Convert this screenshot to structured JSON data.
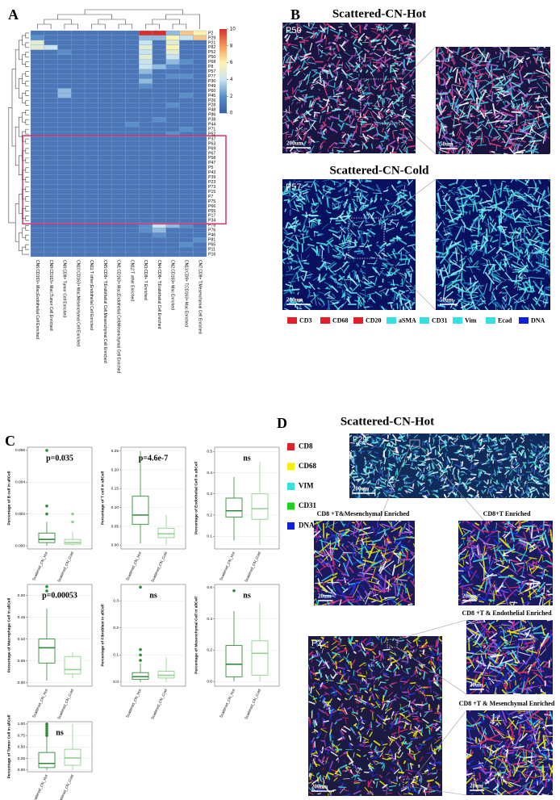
{
  "panel_labels": [
    "A",
    "B",
    "C",
    "D"
  ],
  "heatmap": {
    "rows": [
      "P2",
      "P29",
      "P21",
      "P82",
      "P52",
      "P50",
      "P68",
      "P8",
      "P57",
      "P77",
      "P30",
      "P49",
      "P60",
      "P45",
      "P26",
      "P28",
      "P48",
      "P86",
      "P38",
      "P44",
      "P71",
      "P52",
      "P37",
      "P63",
      "P69",
      "P67",
      "P58",
      "P47",
      "P5",
      "P43",
      "P39",
      "P23",
      "P73",
      "P15",
      "P7",
      "P75",
      "P66",
      "P55",
      "P17",
      "P34",
      "P78",
      "P76",
      "P46",
      "P81",
      "P65",
      "P11",
      "P16"
    ],
    "columns": [
      "CN6:CD163+ Mac;Endothelial Cell Enriched",
      "CN8:CD163+ Mac;Tumor Cell Enriched",
      "CN9:CD8+ Tumor Cell Enriched",
      "CN10:CD163+ Mac;Mesenchymal Cell Enriched",
      "CN11:T other;Endothelial Cell Enriched",
      "CN5:CD8+ T;Endothelial Cell;Mesenchymal Cell Enriched",
      "CN1:CD163+ Mac;Endothelial Cell;Mesenchymal Cell Enriched",
      "CN12:T other Enriched",
      "CN3:CD8+ T Enriched",
      "CN4:CD8+ T;Endothelial Cell Enriched",
      "CN2:CD163+ Mac Enriched",
      "CN13:CD8+ T;CD163+ Mac Enriched",
      "CN7:CD8+ T;Mesenchymal Cell Enriched"
    ],
    "values": [
      [
        1,
        1,
        1,
        1,
        1,
        1,
        1,
        1,
        10,
        10,
        3,
        7,
        6
      ],
      [
        2,
        1,
        1,
        1,
        1,
        1,
        1,
        1,
        3,
        3,
        6,
        4,
        7
      ],
      [
        5,
        1,
        1,
        1,
        1,
        1,
        1,
        1,
        4,
        1,
        5,
        1,
        1
      ],
      [
        5,
        4,
        1,
        1,
        1,
        1,
        1,
        1,
        5,
        1,
        6,
        1,
        1
      ],
      [
        1,
        1,
        2,
        1,
        1,
        1,
        1,
        1,
        4,
        1,
        5,
        1,
        1
      ],
      [
        1,
        1,
        1,
        1,
        1,
        1,
        1,
        1,
        5,
        1,
        4,
        1,
        1
      ],
      [
        1,
        1,
        1,
        1,
        1,
        1,
        1,
        1,
        4,
        1,
        3,
        2,
        1
      ],
      [
        1,
        1,
        1,
        1,
        1,
        1,
        1,
        1,
        4,
        3,
        2,
        1,
        1
      ],
      [
        1,
        1,
        1,
        1,
        1,
        1,
        1,
        1,
        3,
        1,
        1,
        1,
        1
      ],
      [
        1,
        1,
        1,
        1,
        1,
        1,
        1,
        1,
        2,
        1,
        2,
        2,
        1
      ],
      [
        1,
        1,
        1,
        1,
        1,
        1,
        1,
        1,
        3,
        1,
        1,
        1,
        1
      ],
      [
        1,
        1,
        1,
        1,
        1,
        1,
        1,
        1,
        2,
        1,
        1,
        1,
        1
      ],
      [
        1,
        1,
        3,
        1,
        1,
        1,
        1,
        1,
        1,
        1,
        1,
        1,
        1
      ],
      [
        1,
        1,
        3,
        1,
        1,
        1,
        1,
        1,
        1,
        1,
        1,
        2,
        1
      ],
      [
        1,
        1,
        1,
        1,
        1,
        1,
        1,
        1,
        1,
        1,
        1,
        1,
        1
      ],
      [
        1,
        1,
        1,
        1,
        1,
        1,
        1,
        1,
        1,
        1,
        2,
        1,
        1
      ],
      [
        1,
        1,
        1,
        1,
        1,
        1,
        1,
        1,
        1,
        1,
        1,
        1,
        1
      ],
      [
        1,
        1,
        1,
        1,
        1,
        1,
        1,
        1,
        1,
        1,
        1,
        1,
        1
      ],
      [
        1,
        1,
        1,
        1,
        1,
        1,
        1,
        1,
        1,
        2,
        1,
        1,
        1
      ],
      [
        1,
        1,
        1,
        1,
        1,
        1,
        1,
        2,
        1,
        1,
        1,
        1,
        1
      ],
      [
        1,
        1,
        1,
        1,
        1,
        1,
        1,
        1,
        1,
        1,
        1,
        2,
        1
      ],
      [
        1,
        1,
        1,
        1,
        1,
        1,
        1,
        1,
        1,
        1,
        2,
        1,
        1
      ],
      [
        1,
        1,
        1,
        1,
        1,
        1,
        1,
        1,
        1,
        1,
        1,
        1,
        1
      ],
      [
        1,
        1,
        1,
        1,
        1,
        1,
        1,
        1,
        1,
        1,
        1,
        1,
        1
      ],
      [
        1,
        1,
        1,
        1,
        1,
        1,
        1,
        1,
        1,
        1,
        1,
        1,
        1
      ],
      [
        1,
        1,
        1,
        1,
        1,
        1,
        1,
        1,
        1,
        1,
        1,
        1,
        1
      ],
      [
        1,
        1,
        1,
        1,
        1,
        1,
        1,
        1,
        1,
        1,
        1,
        1,
        1
      ],
      [
        1,
        1,
        1,
        1,
        1,
        1,
        1,
        1,
        1,
        1,
        1,
        1,
        1
      ],
      [
        1,
        1,
        1,
        1,
        1,
        1,
        1,
        1,
        1,
        1,
        1,
        1,
        1
      ],
      [
        1,
        1,
        1,
        1,
        1,
        1,
        1,
        1,
        1,
        1,
        1,
        1,
        1
      ],
      [
        1,
        1,
        1,
        1,
        1,
        1,
        1,
        1,
        1,
        1,
        1,
        1,
        1
      ],
      [
        1,
        1,
        1,
        1,
        1,
        1,
        1,
        1,
        1,
        1,
        1,
        1,
        1
      ],
      [
        1,
        1,
        1,
        1,
        1,
        1,
        1,
        1,
        1,
        1,
        1,
        1,
        1
      ],
      [
        1,
        1,
        1,
        1,
        1,
        1,
        1,
        1,
        1,
        1,
        1,
        1,
        1
      ],
      [
        1,
        1,
        1,
        1,
        1,
        1,
        1,
        1,
        1,
        1,
        1,
        1,
        1
      ],
      [
        1,
        1,
        1,
        1,
        1,
        1,
        1,
        1,
        1,
        1,
        1,
        1,
        1
      ],
      [
        1,
        1,
        1,
        1,
        1,
        1,
        1,
        1,
        1,
        1,
        1,
        1,
        1
      ],
      [
        1,
        1,
        1,
        1,
        1,
        1,
        1,
        1,
        1,
        1,
        1,
        1,
        1
      ],
      [
        1,
        1,
        1,
        1,
        1,
        1,
        1,
        1,
        1,
        1,
        1,
        1,
        1
      ],
      [
        1,
        1,
        1,
        1,
        1,
        1,
        1,
        1,
        1,
        1,
        1,
        1,
        1
      ],
      [
        1,
        1,
        1,
        1,
        1,
        1,
        1,
        1,
        2,
        4,
        3,
        2,
        1
      ],
      [
        1,
        1,
        1,
        1,
        1,
        1,
        1,
        1,
        2,
        3,
        1,
        1,
        1
      ],
      [
        1,
        1,
        1,
        1,
        1,
        1,
        1,
        1,
        1,
        2,
        1,
        1,
        1
      ],
      [
        1,
        1,
        1,
        1,
        1,
        1,
        1,
        1,
        1,
        1,
        1,
        1,
        2
      ],
      [
        1,
        1,
        1,
        1,
        1,
        1,
        1,
        1,
        1,
        1,
        1,
        2,
        1
      ],
      [
        1,
        1,
        1,
        1,
        1,
        1,
        1,
        1,
        1,
        1,
        1,
        1,
        1
      ],
      [
        1,
        1,
        1,
        1,
        1,
        1,
        1,
        1,
        1,
        1,
        1,
        1,
        1
      ]
    ],
    "colorbar_range": [
      0,
      10
    ],
    "colorbar_ticks": [
      0,
      2,
      4,
      6,
      8,
      10
    ]
  },
  "panel_b": {
    "hot_title": "Scattered-CN-Hot",
    "hot_sample": "P50",
    "hot_scale": "200um",
    "hot_zoom_scale": "50um",
    "cold_title": "Scattered-CN-Cold",
    "cold_sample": "P57",
    "cold_scale": "200um",
    "cold_zoom_scale": "50um",
    "legend": [
      {
        "name": "CD3",
        "color": "#e3202a"
      },
      {
        "name": "CD68",
        "color": "#e3202a"
      },
      {
        "name": "CD20",
        "color": "#e3202a"
      },
      {
        "name": "aSMA",
        "color": "#35e0e0"
      },
      {
        "name": "CD31",
        "color": "#35e0e0"
      },
      {
        "name": "Vim",
        "color": "#35e0e0"
      },
      {
        "name": "Ecad",
        "color": "#35e0e0"
      },
      {
        "name": "DNA",
        "color": "#1020d8"
      }
    ]
  },
  "panel_c": {
    "groups": [
      "Scattered_CN_Hot",
      "Scattered_CN_Cold"
    ],
    "colors": [
      "#2e8b3a",
      "#8fd18f"
    ],
    "plots": [
      {
        "ylabel": "Percentage of B cell in allCell",
        "annotation": "p=0.035",
        "ylim": [
          -0.0002,
          0.0062
        ],
        "yticks": [
          {
            "value": 0,
            "label": "0.000"
          },
          {
            "value": 0.002,
            "label": "0.002"
          },
          {
            "value": 0.004,
            "label": "0.004"
          },
          {
            "value": 0.006,
            "label": "0.006"
          }
        ],
        "boxes": [
          {
            "whislo": 0,
            "q1": 0.0002,
            "median": 0.0004,
            "q3": 0.0008,
            "whishi": 0.0015,
            "outliers": [
              0.002,
              0.0025,
              0.006
            ]
          },
          {
            "whislo": 0,
            "q1": 0.0001,
            "median": 0.0002,
            "q3": 0.0004,
            "whishi": 0.0009,
            "outliers": [
              0.0015,
              0.002
            ]
          }
        ]
      },
      {
        "ylabel": "Percentage of T cell in allCell",
        "annotation": "p=4.6e-7",
        "ylim": [
          -0.01,
          0.26
        ],
        "yticks": [
          {
            "value": 0,
            "label": "0.00"
          },
          0.05,
          {
            "value": 0.1,
            "label": "0.10"
          },
          0.15,
          {
            "value": 0.2,
            "label": "0.20"
          },
          0.25
        ],
        "boxes": [
          {
            "whislo": 0.005,
            "q1": 0.055,
            "median": 0.08,
            "q3": 0.13,
            "whishi": 0.25,
            "outliers": []
          },
          {
            "whislo": 0,
            "q1": 0.02,
            "median": 0.03,
            "q3": 0.045,
            "whishi": 0.08,
            "outliers": []
          }
        ]
      },
      {
        "ylabel": "Percentage of Endothelial Cell in allCell",
        "annotation": "ns",
        "ylim": [
          0.04,
          0.52
        ],
        "yticks": [
          0.1,
          0.2,
          0.3,
          0.4,
          0.5
        ],
        "boxes": [
          {
            "whislo": 0.08,
            "q1": 0.19,
            "median": 0.22,
            "q3": 0.28,
            "whishi": 0.38,
            "outliers": []
          },
          {
            "whislo": 0.06,
            "q1": 0.18,
            "median": 0.23,
            "q3": 0.3,
            "whishi": 0.45,
            "outliers": []
          }
        ]
      },
      {
        "ylabel": "Percentage of Macrophage Cell in allCell",
        "annotation": "p=0.00053",
        "ylim": [
          -0.008,
          0.225
        ],
        "yticks": [
          {
            "value": 0,
            "label": "0.00"
          },
          0.05,
          {
            "value": 0.1,
            "label": "0.10"
          },
          0.15,
          {
            "value": 0.2,
            "label": "0.20"
          }
        ],
        "boxes": [
          {
            "whislo": 0.005,
            "q1": 0.045,
            "median": 0.08,
            "q3": 0.1,
            "whishi": 0.17,
            "outliers": [
              0.21,
              0.22
            ]
          },
          {
            "whislo": 0.01,
            "q1": 0.02,
            "median": 0.03,
            "q3": 0.06,
            "whishi": 0.07,
            "outliers": []
          }
        ]
      },
      {
        "ylabel": "Percentage of Fibroblast in allCell",
        "annotation": "ns",
        "ylim": [
          -0.015,
          0.36
        ],
        "yticks": [
          {
            "value": 0,
            "label": "0.0"
          },
          0.1,
          0.2,
          0.3
        ],
        "boxes": [
          {
            "whislo": 0,
            "q1": 0.01,
            "median": 0.02,
            "q3": 0.035,
            "whishi": 0.07,
            "outliers": [
              0.08,
              0.1,
              0.12,
              0.35
            ]
          },
          {
            "whislo": 0,
            "q1": 0.015,
            "median": 0.025,
            "q3": 0.04,
            "whishi": 0.09,
            "outliers": []
          }
        ]
      },
      {
        "ylabel": "Percentage of Mesenchymal Cell in allCell",
        "annotation": "ns",
        "ylim": [
          -0.03,
          0.62
        ],
        "yticks": [
          {
            "value": 0,
            "label": "0.0"
          },
          0.2,
          0.4,
          0.6
        ],
        "boxes": [
          {
            "whislo": 0,
            "q1": 0.03,
            "median": 0.11,
            "q3": 0.23,
            "whishi": 0.45,
            "outliers": [
              0.58
            ]
          },
          {
            "whislo": 0,
            "q1": 0.04,
            "median": 0.18,
            "q3": 0.26,
            "whishi": 0.5,
            "outliers": []
          }
        ]
      },
      {
        "ylabel": "Percentage of Tumor Cell in allCell",
        "annotation": "ns",
        "ylim": [
          -0.04,
          1.05
        ],
        "yticks": [
          {
            "value": 0,
            "label": "0.00"
          },
          0.25,
          {
            "value": 0.5,
            "label": "0.50"
          },
          0.75,
          {
            "value": 1,
            "label": "1.00"
          }
        ],
        "boxes": [
          {
            "whislo": 0,
            "q1": 0.05,
            "median": 0.14,
            "q3": 0.38,
            "whishi": 0.72,
            "outliers": [
              0.75,
              0.8,
              0.85,
              0.9,
              0.95,
              1.0
            ]
          },
          {
            "whislo": 0,
            "q1": 0.1,
            "median": 0.26,
            "q3": 0.45,
            "whishi": 1.0,
            "outliers": []
          }
        ]
      }
    ]
  },
  "panel_d": {
    "title": "Scattered-CN-Hot",
    "legend": [
      {
        "name": "CD8",
        "color": "#e3202a"
      },
      {
        "name": "CD68",
        "color": "#f5f000"
      },
      {
        "name": "VIM",
        "color": "#35e0e0"
      },
      {
        "name": "CD31",
        "color": "#20d020"
      },
      {
        "name": "DNA",
        "color": "#1020d8"
      }
    ],
    "top_sample": "P29",
    "top_scale": "200um",
    "zoom_a_title": "CD8 +T&Mesenchymal Enriched",
    "zoom_a_scale": "20um",
    "zoom_b_title": "CD8+T Enriched",
    "zoom_b_scale": "20um",
    "bottom_sample": "P2",
    "bottom_scale": "200um",
    "zoom_c_title": "CD8 +T & Endothelial Enriched",
    "zoom_c_scale": "20um",
    "zoom_d_title": "CD8 +T & Mesenchymal Enriched",
    "zoom_d_scale": "20um"
  }
}
